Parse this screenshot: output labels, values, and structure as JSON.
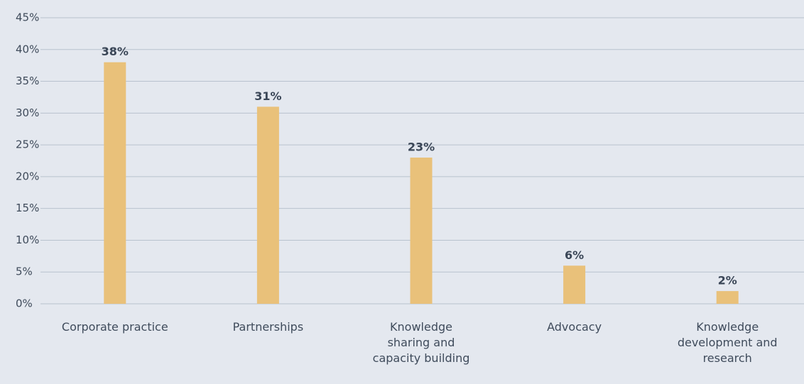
{
  "chart_data": {
    "type": "bar",
    "categories": [
      "Corporate practice",
      "Partnerships",
      "Knowledge sharing and capacity building",
      "Advocacy",
      "Knowledge development and research"
    ],
    "values": [
      38,
      31,
      23,
      6,
      2
    ],
    "value_labels": [
      "38%",
      "31%",
      "23%",
      "6%",
      "2%"
    ],
    "color": "#e9c17a",
    "ylim": [
      0,
      45
    ],
    "yticks": [
      {
        "value": 0,
        "label": "0%"
      },
      {
        "value": 5,
        "label": "5%"
      },
      {
        "value": 10,
        "label": "10%"
      },
      {
        "value": 15,
        "label": "15%"
      },
      {
        "value": 20,
        "label": "20%"
      },
      {
        "value": 25,
        "label": "25%"
      },
      {
        "value": 30,
        "label": "30%"
      },
      {
        "value": 35,
        "label": "35%"
      },
      {
        "value": 40,
        "label": "40%"
      },
      {
        "value": 45,
        "label": "45%"
      }
    ],
    "grid": true
  }
}
